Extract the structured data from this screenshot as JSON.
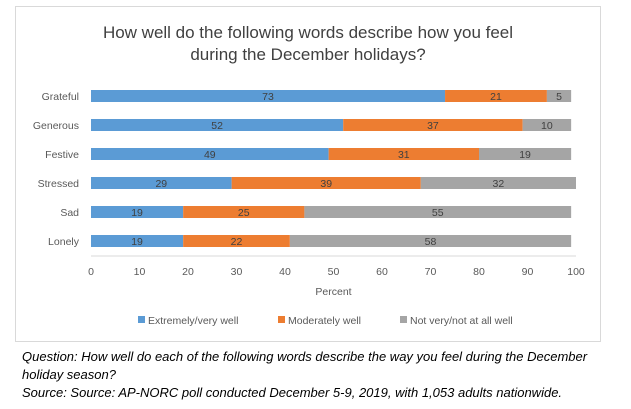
{
  "chart_data": {
    "type": "bar",
    "orientation": "horizontal",
    "stacked": true,
    "title": "How well do the following words describe how you feel during the December holidays?",
    "title_lines": [
      "How well do the following words describe how you feel",
      "during the December holidays?"
    ],
    "xlabel": "Percent",
    "ylabel": "",
    "xlim": [
      0,
      100
    ],
    "x_ticks": [
      0,
      10,
      20,
      30,
      40,
      50,
      60,
      70,
      80,
      90,
      100
    ],
    "grid": false,
    "legend_position": "bottom",
    "categories": [
      "Grateful",
      "Generous",
      "Festive",
      "Stressed",
      "Sad",
      "Lonely"
    ],
    "series": [
      {
        "name": "Extremely/very well",
        "color": "#5b9bd5",
        "values": [
          73,
          52,
          49,
          29,
          19,
          19
        ]
      },
      {
        "name": "Moderately well",
        "color": "#ed7d31",
        "values": [
          21,
          37,
          31,
          39,
          25,
          22
        ]
      },
      {
        "name": "Not very/not at all well",
        "color": "#a5a5a5",
        "values": [
          5,
          10,
          19,
          32,
          55,
          58
        ]
      }
    ]
  },
  "caption": {
    "question": "Question: How well do each of the following words describe the way you feel during the December holiday season?",
    "source": "Source: Source: AP-NORC poll conducted December 5-9, 2019, with 1,053 adults nationwide."
  }
}
